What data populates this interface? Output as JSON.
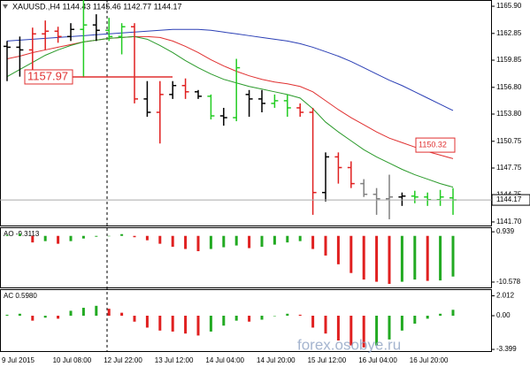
{
  "chart_data": [
    {
      "type": "ohlc",
      "title": "XAUUSD.,H4  1144.43 1145.46 1142.77 1144.17",
      "categories": [
        "9 Jul 2015",
        null,
        null,
        null,
        "10 Jul 08:00",
        null,
        null,
        null,
        "12 Jul 22:00",
        null,
        null,
        null,
        "13 Jul 12:00",
        null,
        null,
        null,
        "14 Jul 04:00",
        null,
        null,
        null,
        "14 Jul 20:00",
        null,
        null,
        null,
        "15 Jul 12:00",
        null,
        null,
        null,
        "16 Jul 04:00",
        null,
        null,
        null,
        "16 Jul 20:00",
        null,
        null,
        null
      ],
      "open": [
        1161.4,
        1161.3,
        1161.0,
        1162.8,
        1163.1,
        1162.5,
        1163.3,
        1163.8,
        1163.2,
        1162.5,
        1163.6,
        1155.5,
        1154.0,
        1156.0,
        1157.0,
        1156.3,
        1155.8,
        1153.6,
        1153.4,
        1156.0,
        1155.5,
        1155.0,
        1155.3,
        1154.5,
        1154.0,
        1145.0,
        1149.0,
        1147.8,
        1146.0,
        1144.8,
        1144.3,
        1144.5,
        1144.6,
        1144.5,
        1144.2,
        1144.4
      ],
      "high": [
        1162.0,
        1162.5,
        1163.5,
        1164.3,
        1163.6,
        1164.0,
        1166.6,
        1165.0,
        1164.6,
        1164.0,
        1164.0,
        1157.5,
        1157.5,
        1157.5,
        1157.8,
        1156.5,
        1156.0,
        1154.5,
        1160.0,
        1156.5,
        1156.5,
        1156.0,
        1156.0,
        1155.0,
        1154.5,
        1149.5,
        1149.5,
        1148.5,
        1146.5,
        1145.5,
        1147.0,
        1145.0,
        1145.2,
        1145.0,
        1145.3,
        1145.5
      ],
      "low": [
        1157.5,
        1158.0,
        1157.9,
        1161.0,
        1161.8,
        1162.0,
        1157.9,
        1162.0,
        1162.0,
        1160.5,
        1155.0,
        1153.5,
        1150.5,
        1155.5,
        1155.5,
        1155.5,
        1153.2,
        1152.5,
        1153.0,
        1153.5,
        1154.0,
        1154.5,
        1153.5,
        1153.5,
        1142.5,
        1144.0,
        1146.0,
        1145.5,
        1144.5,
        1142.5,
        1142.0,
        1143.5,
        1143.8,
        1143.5,
        1143.5,
        1142.5
      ],
      "close": [
        1161.3,
        1161.0,
        1162.8,
        1163.1,
        1162.5,
        1163.3,
        1163.8,
        1163.2,
        1162.5,
        1163.6,
        1155.5,
        1154.0,
        1156.0,
        1157.0,
        1156.3,
        1155.8,
        1153.6,
        1153.4,
        1159.0,
        1155.5,
        1155.0,
        1155.3,
        1154.5,
        1154.0,
        1145.0,
        1149.0,
        1147.8,
        1146.0,
        1144.8,
        1144.3,
        1144.5,
        1144.6,
        1144.5,
        1144.2,
        1144.5,
        1144.17
      ],
      "bar_colors": [
        "#000",
        "#000",
        "#e02020",
        "#e02020",
        "#e02020",
        "#000",
        "#22cc22",
        "#000",
        "#22cc22",
        "#22cc22",
        "#e02020",
        "#000",
        "#e02020",
        "#000",
        "#e02020",
        "#000",
        "#22cc22",
        "#000",
        "#22cc22",
        "#000",
        "#000",
        "#22cc22",
        "#22cc22",
        "#e02020",
        "#e02020",
        "#000",
        "#e02020",
        "#e02020",
        "#808080",
        "#808080",
        "#808080",
        "#000",
        "#22cc22",
        "#22cc22",
        "#22cc22",
        "#22cc22"
      ],
      "series": [
        {
          "color": "#2b3fb5",
          "values": [
            1162.0,
            1162.1,
            1162.2,
            1162.3,
            1162.4,
            1162.5,
            1162.6,
            1162.7,
            1162.8,
            1162.9,
            1163.0,
            1163.1,
            1163.2,
            1163.3,
            1163.3,
            1163.3,
            1163.2,
            1163.0,
            1162.8,
            1162.6,
            1162.4,
            1162.2,
            1162.0,
            1161.7,
            1161.3,
            1160.8,
            1160.3,
            1159.7,
            1159.0,
            1158.3,
            1157.6,
            1157.0,
            1156.3,
            1155.6,
            1154.9,
            1154.2
          ]
        },
        {
          "color": "#e03030",
          "values": [
            1160.0,
            1160.3,
            1160.7,
            1161.0,
            1161.3,
            1161.6,
            1161.9,
            1162.1,
            1162.3,
            1162.4,
            1162.5,
            1162.5,
            1162.4,
            1162.0,
            1161.4,
            1160.7,
            1159.9,
            1159.2,
            1158.6,
            1158.1,
            1157.7,
            1157.4,
            1157.2,
            1156.9,
            1156.3,
            1155.3,
            1154.3,
            1153.4,
            1152.6,
            1151.8,
            1151.1,
            1150.6,
            1150.1,
            1149.6,
            1149.2,
            1148.8
          ]
        },
        {
          "color": "#2a9a2a",
          "values": [
            1158.0,
            1158.8,
            1159.6,
            1160.4,
            1161.0,
            1161.5,
            1161.9,
            1162.1,
            1162.3,
            1162.4,
            1162.5,
            1162.2,
            1161.5,
            1160.7,
            1159.8,
            1159.0,
            1158.3,
            1157.7,
            1157.3,
            1156.9,
            1156.6,
            1156.3,
            1156.0,
            1155.6,
            1154.4,
            1152.9,
            1151.8,
            1150.8,
            1149.8,
            1149.0,
            1148.3,
            1147.6,
            1147.0,
            1146.5,
            1146.0,
            1145.6
          ]
        }
      ],
      "levels": [
        {
          "value": 1157.97,
          "color": "#e03030"
        },
        {
          "value": 1150.32,
          "color": "#e03030"
        }
      ],
      "last_price": 1144.17,
      "ylim": [
        1141.3,
        1166.6
      ],
      "yticks": [
        {
          "value": 1165.9,
          "label": "1165.90"
        },
        1162.85,
        1159.85,
        {
          "value": 1156.8,
          "label": "1156.80"
        },
        {
          "value": 1153.8,
          "label": "1153.80"
        },
        1150.75,
        1147.75,
        1144.75,
        {
          "value": 1141.7,
          "label": "1141.70"
        }
      ]
    },
    {
      "type": "histogram",
      "label": "AO -9.3113",
      "up_color": "#22aa22",
      "down_color": "#e02020",
      "values": [
        0.2,
        0.5,
        -1.5,
        -1.2,
        -1.8,
        -1.2,
        -0.6,
        -0.2,
        0.0,
        0.4,
        -0.3,
        -1.0,
        -1.8,
        -2.5,
        -3.0,
        -3.5,
        -3.0,
        -2.6,
        -2.2,
        -2.8,
        -2.5,
        -2.0,
        -1.5,
        -1.2,
        -3.0,
        -4.5,
        -6.5,
        -8.5,
        -10.0,
        -10.5,
        -11.0,
        -10.5,
        -10.0,
        -10.3,
        -10.2,
        -9.3113
      ],
      "ylim": [
        -12.0,
        1.77
      ],
      "yticks": [
        0.939,
        -10.578
      ]
    },
    {
      "type": "histogram",
      "label": "AC 0.5980",
      "up_color": "#22aa22",
      "down_color": "#e02020",
      "values": [
        0.1,
        0.2,
        -0.5,
        -0.2,
        -0.3,
        0.5,
        0.8,
        1.0,
        0.7,
        0.3,
        -0.6,
        -1.2,
        -1.5,
        -1.6,
        -1.8,
        -2.0,
        -1.6,
        -1.0,
        -0.5,
        -0.6,
        -0.4,
        0.0,
        0.2,
        0.1,
        -1.2,
        -1.8,
        -2.5,
        -3.0,
        -3.2,
        -3.0,
        -2.4,
        -1.5,
        -0.8,
        -0.3,
        0.2,
        0.598
      ],
      "ylim": [
        -3.66,
        2.59
      ],
      "yticks": [
        2.012,
        {
          "value": 0,
          "label": "0.00"
        },
        -3.399
      ]
    }
  ],
  "watermark": "forex.osobye.ru"
}
